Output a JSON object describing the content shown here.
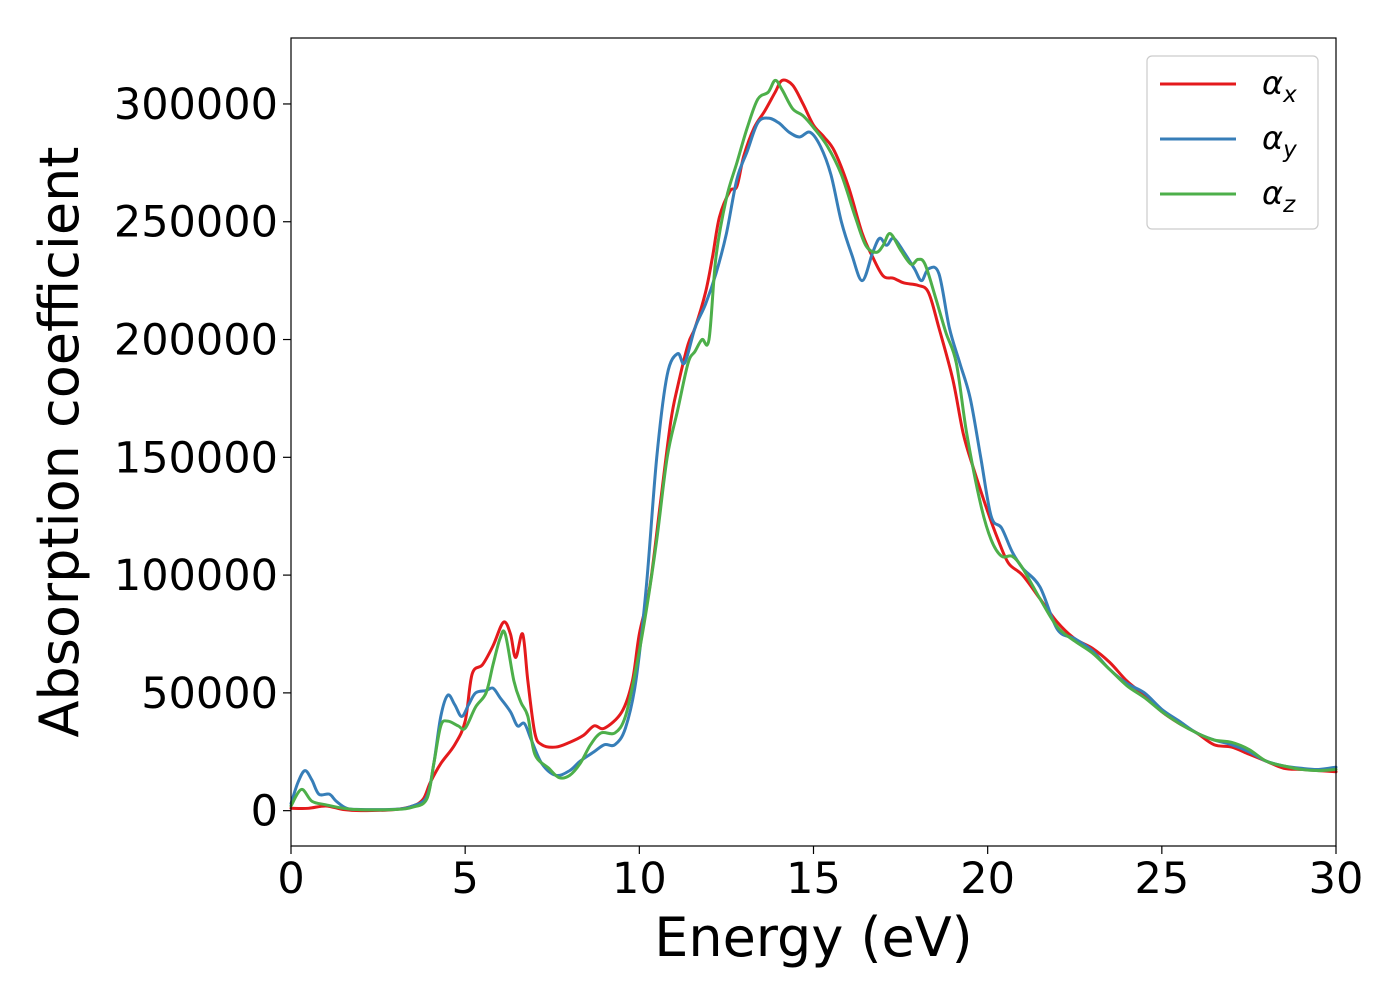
{
  "chart_data": {
    "type": "line",
    "xlabel": "Energy (eV)",
    "ylabel": "Absorption coefficient",
    "xlim": [
      0,
      30
    ],
    "ylim": [
      -15000,
      328000
    ],
    "xticks": [
      0,
      5,
      10,
      15,
      20,
      25,
      30
    ],
    "yticks": [
      0,
      50000,
      100000,
      150000,
      200000,
      250000,
      300000
    ],
    "grid": false,
    "legend_position": "top-right",
    "series": [
      {
        "name": "α_x",
        "name_base": "α",
        "name_sub": "x",
        "color": "#e41a1c",
        "points": [
          [
            0,
            1000
          ],
          [
            0.5,
            1000
          ],
          [
            1,
            2000
          ],
          [
            1.5,
            500
          ],
          [
            2,
            0
          ],
          [
            3,
            500
          ],
          [
            3.5,
            2000
          ],
          [
            3.8,
            5000
          ],
          [
            4,
            12000
          ],
          [
            4.3,
            20000
          ],
          [
            4.7,
            28000
          ],
          [
            5,
            38000
          ],
          [
            5.2,
            58000
          ],
          [
            5.5,
            62000
          ],
          [
            5.8,
            70000
          ],
          [
            6.1,
            80000
          ],
          [
            6.3,
            75000
          ],
          [
            6.45,
            65000
          ],
          [
            6.65,
            75000
          ],
          [
            6.8,
            55000
          ],
          [
            7,
            33000
          ],
          [
            7.2,
            28000
          ],
          [
            7.6,
            27000
          ],
          [
            8,
            29000
          ],
          [
            8.4,
            32000
          ],
          [
            8.7,
            36000
          ],
          [
            9,
            35000
          ],
          [
            9.5,
            42000
          ],
          [
            9.8,
            55000
          ],
          [
            10,
            75000
          ],
          [
            10.3,
            95000
          ],
          [
            10.6,
            130000
          ],
          [
            10.9,
            165000
          ],
          [
            11.1,
            180000
          ],
          [
            11.4,
            198000
          ],
          [
            11.6,
            205000
          ],
          [
            11.9,
            220000
          ],
          [
            12.1,
            235000
          ],
          [
            12.3,
            252000
          ],
          [
            12.6,
            263000
          ],
          [
            12.8,
            265000
          ],
          [
            13,
            278000
          ],
          [
            13.3,
            290000
          ],
          [
            13.6,
            297000
          ],
          [
            13.9,
            305000
          ],
          [
            14.1,
            310000
          ],
          [
            14.4,
            308000
          ],
          [
            14.7,
            300000
          ],
          [
            15,
            291000
          ],
          [
            15.3,
            286000
          ],
          [
            15.6,
            280000
          ],
          [
            16,
            265000
          ],
          [
            16.4,
            245000
          ],
          [
            16.7,
            235000
          ],
          [
            17,
            227000
          ],
          [
            17.3,
            226000
          ],
          [
            17.6,
            224000
          ],
          [
            18,
            223000
          ],
          [
            18.3,
            220000
          ],
          [
            18.6,
            205000
          ],
          [
            19,
            183000
          ],
          [
            19.3,
            160000
          ],
          [
            19.6,
            145000
          ],
          [
            20,
            127000
          ],
          [
            20.3,
            115000
          ],
          [
            20.6,
            105000
          ],
          [
            21,
            100000
          ],
          [
            21.5,
            90000
          ],
          [
            22,
            80000
          ],
          [
            22.5,
            73000
          ],
          [
            23,
            69000
          ],
          [
            23.5,
            63000
          ],
          [
            24,
            55000
          ],
          [
            24.5,
            49000
          ],
          [
            25,
            42000
          ],
          [
            25.5,
            37000
          ],
          [
            26,
            33000
          ],
          [
            26.5,
            28000
          ],
          [
            27,
            27000
          ],
          [
            27.5,
            24000
          ],
          [
            28,
            21000
          ],
          [
            28.5,
            18000
          ],
          [
            29,
            17500
          ],
          [
            29.5,
            17000
          ],
          [
            30,
            16500
          ]
        ]
      },
      {
        "name": "α_y",
        "name_base": "α",
        "name_sub": "y",
        "color": "#377eb8",
        "points": [
          [
            0,
            3000
          ],
          [
            0.2,
            12000
          ],
          [
            0.4,
            17000
          ],
          [
            0.6,
            13000
          ],
          [
            0.8,
            7000
          ],
          [
            1.1,
            7000
          ],
          [
            1.3,
            4000
          ],
          [
            1.6,
            1000
          ],
          [
            2,
            500
          ],
          [
            3,
            600
          ],
          [
            3.5,
            2000
          ],
          [
            3.9,
            6000
          ],
          [
            4.1,
            20000
          ],
          [
            4.3,
            40000
          ],
          [
            4.5,
            49000
          ],
          [
            4.7,
            45000
          ],
          [
            4.9,
            40000
          ],
          [
            5.1,
            45000
          ],
          [
            5.3,
            50000
          ],
          [
            5.6,
            51000
          ],
          [
            5.8,
            52000
          ],
          [
            6,
            48000
          ],
          [
            6.3,
            42000
          ],
          [
            6.5,
            36000
          ],
          [
            6.7,
            37000
          ],
          [
            6.9,
            30000
          ],
          [
            7.2,
            20000
          ],
          [
            7.6,
            15000
          ],
          [
            8,
            17000
          ],
          [
            8.3,
            21000
          ],
          [
            8.7,
            25000
          ],
          [
            9,
            28000
          ],
          [
            9.3,
            28000
          ],
          [
            9.6,
            35000
          ],
          [
            9.9,
            55000
          ],
          [
            10.2,
            95000
          ],
          [
            10.5,
            150000
          ],
          [
            10.8,
            185000
          ],
          [
            11.1,
            194000
          ],
          [
            11.3,
            190000
          ],
          [
            11.6,
            205000
          ],
          [
            11.9,
            215000
          ],
          [
            12.2,
            228000
          ],
          [
            12.5,
            245000
          ],
          [
            12.8,
            268000
          ],
          [
            13.1,
            280000
          ],
          [
            13.4,
            292000
          ],
          [
            13.7,
            294000
          ],
          [
            14,
            292000
          ],
          [
            14.3,
            288000
          ],
          [
            14.6,
            286000
          ],
          [
            14.9,
            288000
          ],
          [
            15.2,
            282000
          ],
          [
            15.5,
            270000
          ],
          [
            15.8,
            250000
          ],
          [
            16.1,
            236000
          ],
          [
            16.4,
            225000
          ],
          [
            16.7,
            237000
          ],
          [
            16.9,
            243000
          ],
          [
            17.1,
            240000
          ],
          [
            17.3,
            243000
          ],
          [
            17.6,
            237000
          ],
          [
            17.9,
            230000
          ],
          [
            18.1,
            225000
          ],
          [
            18.3,
            230000
          ],
          [
            18.6,
            228000
          ],
          [
            18.9,
            205000
          ],
          [
            19.2,
            190000
          ],
          [
            19.5,
            175000
          ],
          [
            19.8,
            150000
          ],
          [
            20.1,
            125000
          ],
          [
            20.4,
            120000
          ],
          [
            20.7,
            110000
          ],
          [
            21,
            103000
          ],
          [
            21.5,
            95000
          ],
          [
            22,
            77000
          ],
          [
            22.5,
            73000
          ],
          [
            23,
            68000
          ],
          [
            23.5,
            60000
          ],
          [
            24,
            54000
          ],
          [
            24.5,
            50000
          ],
          [
            25,
            43000
          ],
          [
            25.5,
            38000
          ],
          [
            26,
            33000
          ],
          [
            26.5,
            30000
          ],
          [
            27,
            28000
          ],
          [
            27.5,
            25000
          ],
          [
            28,
            21000
          ],
          [
            28.5,
            19000
          ],
          [
            29,
            18000
          ],
          [
            29.5,
            17500
          ],
          [
            30,
            18500
          ]
        ]
      },
      {
        "name": "α_z",
        "name_base": "α",
        "name_sub": "z",
        "color": "#4daf4a",
        "points": [
          [
            0,
            2000
          ],
          [
            0.3,
            9000
          ],
          [
            0.6,
            4000
          ],
          [
            1,
            2500
          ],
          [
            1.5,
            1000
          ],
          [
            2,
            400
          ],
          [
            3,
            500
          ],
          [
            3.5,
            1500
          ],
          [
            3.9,
            5000
          ],
          [
            4.1,
            20000
          ],
          [
            4.3,
            36000
          ],
          [
            4.5,
            38000
          ],
          [
            4.8,
            36000
          ],
          [
            5,
            35000
          ],
          [
            5.3,
            44000
          ],
          [
            5.6,
            50000
          ],
          [
            5.8,
            62000
          ],
          [
            6,
            73000
          ],
          [
            6.15,
            75000
          ],
          [
            6.4,
            55000
          ],
          [
            6.6,
            46000
          ],
          [
            6.8,
            40000
          ],
          [
            7,
            24000
          ],
          [
            7.4,
            18000
          ],
          [
            7.7,
            14000
          ],
          [
            8,
            15000
          ],
          [
            8.3,
            20000
          ],
          [
            8.6,
            28000
          ],
          [
            8.9,
            33000
          ],
          [
            9.3,
            33000
          ],
          [
            9.6,
            40000
          ],
          [
            9.9,
            60000
          ],
          [
            10.2,
            85000
          ],
          [
            10.5,
            115000
          ],
          [
            10.8,
            150000
          ],
          [
            11.1,
            170000
          ],
          [
            11.4,
            190000
          ],
          [
            11.6,
            195000
          ],
          [
            11.8,
            200000
          ],
          [
            12,
            200000
          ],
          [
            12.2,
            235000
          ],
          [
            12.5,
            260000
          ],
          [
            12.8,
            275000
          ],
          [
            13.1,
            290000
          ],
          [
            13.4,
            302000
          ],
          [
            13.7,
            305000
          ],
          [
            13.9,
            310000
          ],
          [
            14.1,
            306000
          ],
          [
            14.4,
            298000
          ],
          [
            14.7,
            295000
          ],
          [
            15,
            290000
          ],
          [
            15.4,
            282000
          ],
          [
            15.8,
            270000
          ],
          [
            16.2,
            252000
          ],
          [
            16.5,
            240000
          ],
          [
            16.8,
            237000
          ],
          [
            17,
            240000
          ],
          [
            17.2,
            245000
          ],
          [
            17.5,
            238000
          ],
          [
            17.8,
            232000
          ],
          [
            18,
            234000
          ],
          [
            18.2,
            232000
          ],
          [
            18.5,
            218000
          ],
          [
            18.8,
            203000
          ],
          [
            19.1,
            190000
          ],
          [
            19.4,
            160000
          ],
          [
            19.8,
            130000
          ],
          [
            20.1,
            115000
          ],
          [
            20.4,
            108000
          ],
          [
            20.7,
            108000
          ],
          [
            21,
            103000
          ],
          [
            21.5,
            90000
          ],
          [
            22,
            78000
          ],
          [
            22.5,
            72000
          ],
          [
            23,
            67000
          ],
          [
            23.5,
            60000
          ],
          [
            24,
            53000
          ],
          [
            24.5,
            48000
          ],
          [
            25,
            42000
          ],
          [
            25.5,
            37000
          ],
          [
            26,
            33000
          ],
          [
            26.5,
            30000
          ],
          [
            27,
            29000
          ],
          [
            27.5,
            26000
          ],
          [
            28,
            21000
          ],
          [
            28.5,
            19000
          ],
          [
            29,
            17500
          ],
          [
            29.5,
            17000
          ],
          [
            30,
            17500
          ]
        ]
      }
    ]
  }
}
